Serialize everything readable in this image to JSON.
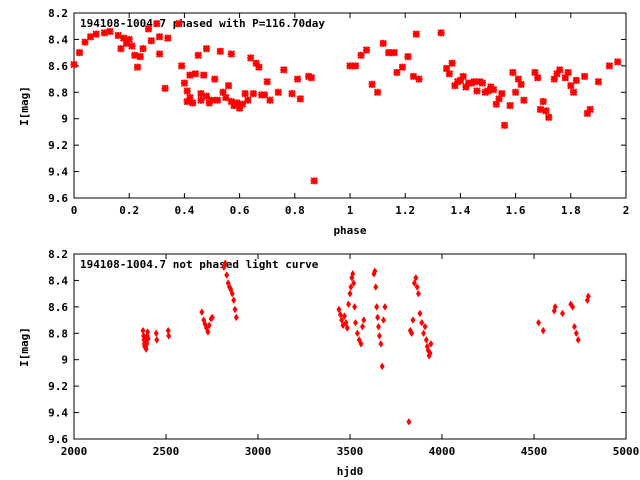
{
  "chart_data": [
    {
      "type": "scatter",
      "title": "194108-1004.7 phased with P=116.70day",
      "xlabel": "phase",
      "ylabel": "I[mag]",
      "xlim": [
        0,
        2
      ],
      "ylim": [
        8.2,
        9.6
      ],
      "y_inverted": true,
      "grid": false,
      "marker": "star",
      "color": "#ff0000",
      "xticks": [
        "0",
        "0.2",
        "0.4",
        "0.6",
        "0.8",
        "1",
        "1.2",
        "1.4",
        "1.6",
        "1.8",
        "2"
      ],
      "xtick_values": [
        0,
        0.2,
        0.4,
        0.6,
        0.8,
        1.0,
        1.2,
        1.4,
        1.6,
        1.8,
        2.0
      ],
      "yticks": [
        "8.2",
        "8.4",
        "8.6",
        "8.8",
        "9",
        "9.2",
        "9.4",
        "9.6"
      ],
      "ytick_values": [
        8.2,
        8.4,
        8.6,
        8.8,
        9.0,
        9.2,
        9.4,
        9.6
      ],
      "x": [
        0.0,
        0.02,
        0.04,
        0.06,
        0.08,
        0.11,
        0.13,
        0.16,
        0.17,
        0.18,
        0.19,
        0.2,
        0.21,
        0.22,
        0.23,
        0.24,
        0.25,
        0.27,
        0.28,
        0.3,
        0.31,
        0.31,
        0.33,
        0.34,
        0.38,
        0.39,
        0.4,
        0.41,
        0.41,
        0.42,
        0.42,
        0.43,
        0.44,
        0.45,
        0.46,
        0.46,
        0.47,
        0.48,
        0.48,
        0.49,
        0.5,
        0.51,
        0.52,
        0.53,
        0.54,
        0.55,
        0.56,
        0.57,
        0.57,
        0.58,
        0.59,
        0.6,
        0.61,
        0.62,
        0.63,
        0.64,
        0.65,
        0.66,
        0.67,
        0.68,
        0.69,
        0.7,
        0.71,
        0.74,
        0.76,
        0.79,
        0.81,
        0.82,
        0.85,
        0.86,
        0.87,
        1.0,
        1.02,
        1.04,
        1.06,
        1.08,
        1.1,
        1.12,
        1.14,
        1.15,
        1.16,
        1.17,
        1.19,
        1.21,
        1.23,
        1.24,
        1.25,
        1.33,
        1.35,
        1.36,
        1.37,
        1.38,
        1.39,
        1.4,
        1.41,
        1.42,
        1.43,
        1.44,
        1.45,
        1.46,
        1.47,
        1.48,
        1.49,
        1.5,
        1.51,
        1.52,
        1.53,
        1.54,
        1.55,
        1.56,
        1.58,
        1.59,
        1.6,
        1.61,
        1.62,
        1.63,
        1.67,
        1.68,
        1.69,
        1.7,
        1.71,
        1.72,
        1.74,
        1.75,
        1.76,
        1.78,
        1.79,
        1.8,
        1.81,
        1.82,
        1.85,
        1.86,
        1.87,
        1.9,
        1.94,
        1.97
      ],
      "y": [
        8.59,
        8.5,
        8.42,
        8.38,
        8.36,
        8.35,
        8.34,
        8.37,
        8.47,
        8.39,
        8.43,
        8.4,
        8.45,
        8.52,
        8.61,
        8.53,
        8.47,
        8.32,
        8.41,
        8.28,
        8.51,
        8.38,
        8.77,
        8.39,
        8.28,
        8.6,
        8.73,
        8.79,
        8.87,
        8.67,
        8.84,
        8.88,
        8.66,
        8.52,
        8.81,
        8.86,
        8.67,
        8.83,
        8.47,
        8.88,
        8.86,
        8.7,
        8.86,
        8.49,
        8.8,
        8.84,
        8.75,
        8.51,
        8.87,
        8.9,
        8.88,
        8.92,
        8.89,
        8.81,
        8.86,
        8.54,
        8.81,
        8.58,
        8.61,
        8.82,
        8.82,
        8.72,
        8.86,
        8.8,
        8.63,
        8.81,
        8.7,
        8.85,
        8.68,
        8.69,
        9.47,
        8.6,
        8.6,
        8.52,
        8.48,
        8.74,
        8.8,
        8.43,
        8.5,
        8.5,
        8.5,
        8.65,
        8.61,
        8.53,
        8.68,
        8.36,
        8.7,
        8.35,
        8.62,
        8.66,
        8.58,
        8.75,
        8.72,
        8.71,
        8.68,
        8.76,
        8.73,
        8.73,
        8.72,
        8.79,
        8.72,
        8.73,
        8.8,
        8.79,
        8.76,
        8.78,
        8.89,
        8.85,
        8.81,
        9.05,
        8.9,
        8.65,
        8.8,
        8.7,
        8.74,
        8.86,
        8.65,
        8.69,
        8.93,
        8.87,
        8.94,
        8.99,
        8.7,
        8.66,
        8.63,
        8.69,
        8.65,
        8.75,
        8.8,
        8.71,
        8.68,
        8.96,
        8.93,
        8.72,
        8.6,
        8.57
      ]
    },
    {
      "type": "scatter",
      "title": "194108-1004.7 not phased light curve",
      "xlabel": "hjd0",
      "ylabel": "I[mag]",
      "xlim": [
        2000,
        5000
      ],
      "ylim": [
        8.2,
        9.6
      ],
      "y_inverted": true,
      "grid": false,
      "marker": "diamond",
      "color": "#ff0000",
      "xticks": [
        "2000",
        "2500",
        "3000",
        "3500",
        "4000",
        "4500",
        "5000"
      ],
      "xtick_values": [
        2000,
        2500,
        3000,
        3500,
        4000,
        4500,
        5000
      ],
      "yticks": [
        "8.2",
        "8.4",
        "8.6",
        "8.8",
        "9",
        "9.2",
        "9.4",
        "9.6"
      ],
      "ytick_values": [
        8.2,
        8.4,
        8.6,
        8.8,
        9.0,
        9.2,
        9.4,
        9.6
      ],
      "x": [
        2375,
        2378,
        2380,
        2382,
        2384,
        2386,
        2388,
        2390,
        2392,
        2394,
        2396,
        2398,
        2400,
        2403,
        2447,
        2450,
        2512,
        2515,
        2695,
        2705,
        2712,
        2720,
        2728,
        2735,
        2745,
        2752,
        2815,
        2822,
        2830,
        2838,
        2845,
        2852,
        2860,
        2868,
        2875,
        2882,
        3440,
        3448,
        3455,
        3462,
        3470,
        3478,
        3485,
        3492,
        3500,
        3505,
        3510,
        3515,
        3520,
        3525,
        3530,
        3540,
        3550,
        3560,
        3568,
        3575,
        3630,
        3635,
        3640,
        3645,
        3650,
        3655,
        3660,
        3668,
        3675,
        3682,
        3690,
        3820,
        3828,
        3835,
        3842,
        3850,
        3858,
        3865,
        3872,
        3880,
        3890,
        3900,
        3908,
        3915,
        3920,
        3925,
        3930,
        3935,
        3940,
        4525,
        4550,
        4610,
        4615,
        4655,
        4700,
        4710,
        4720,
        4730,
        4740,
        4790,
        4795
      ],
      "y": [
        8.78,
        8.82,
        8.85,
        8.88,
        8.9,
        8.83,
        8.87,
        8.9,
        8.92,
        8.86,
        8.88,
        8.82,
        8.79,
        8.84,
        8.8,
        8.85,
        8.78,
        8.82,
        8.64,
        8.7,
        8.73,
        8.76,
        8.79,
        8.74,
        8.69,
        8.68,
        8.3,
        8.27,
        8.36,
        8.42,
        8.45,
        8.47,
        8.5,
        8.55,
        8.62,
        8.68,
        8.62,
        8.66,
        8.7,
        8.74,
        8.67,
        8.72,
        8.76,
        8.58,
        8.5,
        8.45,
        8.38,
        8.35,
        8.42,
        8.6,
        8.72,
        8.8,
        8.85,
        8.88,
        8.75,
        8.7,
        8.35,
        8.33,
        8.45,
        8.6,
        8.68,
        8.75,
        8.82,
        8.88,
        9.05,
        8.7,
        8.6,
        9.47,
        8.78,
        8.8,
        8.7,
        8.42,
        8.38,
        8.45,
        8.5,
        8.65,
        8.72,
        8.8,
        8.75,
        8.85,
        8.9,
        8.93,
        8.97,
        8.95,
        8.88,
        8.72,
        8.78,
        8.63,
        8.6,
        8.65,
        8.58,
        8.6,
        8.75,
        8.8,
        8.85,
        8.55,
        8.52
      ]
    }
  ]
}
